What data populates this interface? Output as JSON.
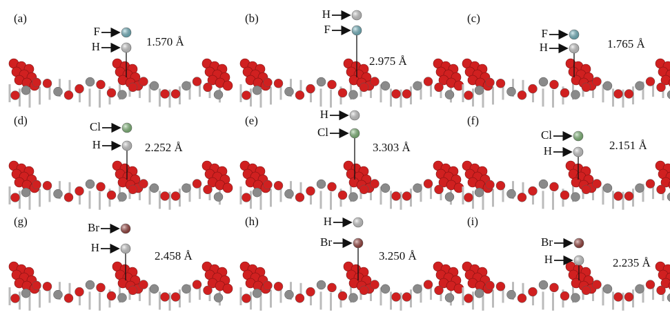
{
  "panels": [
    {
      "label": "(a)",
      "atoms": [
        {
          "symbol": "F",
          "color": "#7fcbd9"
        },
        {
          "symbol": "H",
          "color": "#e4e4e4"
        }
      ],
      "distance": "1.570 Å"
    },
    {
      "label": "(b)",
      "atoms": [
        {
          "symbol": "H",
          "color": "#e4e4e4"
        },
        {
          "symbol": "F",
          "color": "#7fcbd9"
        }
      ],
      "distance": "2.975 Å"
    },
    {
      "label": "(c)",
      "atoms": [
        {
          "symbol": "F",
          "color": "#7fcbd9"
        },
        {
          "symbol": "H",
          "color": "#e4e4e4"
        }
      ],
      "distance": "1.765 Å"
    },
    {
      "label": "(d)",
      "atoms": [
        {
          "symbol": "Cl",
          "color": "#8fcf86"
        },
        {
          "symbol": "H",
          "color": "#e4e4e4"
        }
      ],
      "distance": "2.252 Å"
    },
    {
      "label": "(e)",
      "atoms": [
        {
          "symbol": "H",
          "color": "#e4e4e4"
        },
        {
          "symbol": "Cl",
          "color": "#8fcf86"
        }
      ],
      "distance": "3.303 Å"
    },
    {
      "label": "(f)",
      "atoms": [
        {
          "symbol": "Cl",
          "color": "#8fcf86"
        },
        {
          "symbol": "H",
          "color": "#e4e4e4"
        }
      ],
      "distance": "2.151 Å"
    },
    {
      "label": "(g)",
      "atoms": [
        {
          "symbol": "Br",
          "color": "#a8453f"
        },
        {
          "symbol": "H",
          "color": "#e4e4e4"
        }
      ],
      "distance": "2.458 Å"
    },
    {
      "label": "(h)",
      "atoms": [
        {
          "symbol": "H",
          "color": "#e4e4e4"
        },
        {
          "symbol": "Br",
          "color": "#a8453f"
        }
      ],
      "distance": "3.250 Å"
    },
    {
      "label": "(i)",
      "atoms": [
        {
          "symbol": "Br",
          "color": "#a8453f"
        },
        {
          "symbol": "H",
          "color": "#e4e4e4"
        }
      ],
      "distance": "2.235 Å"
    }
  ]
}
